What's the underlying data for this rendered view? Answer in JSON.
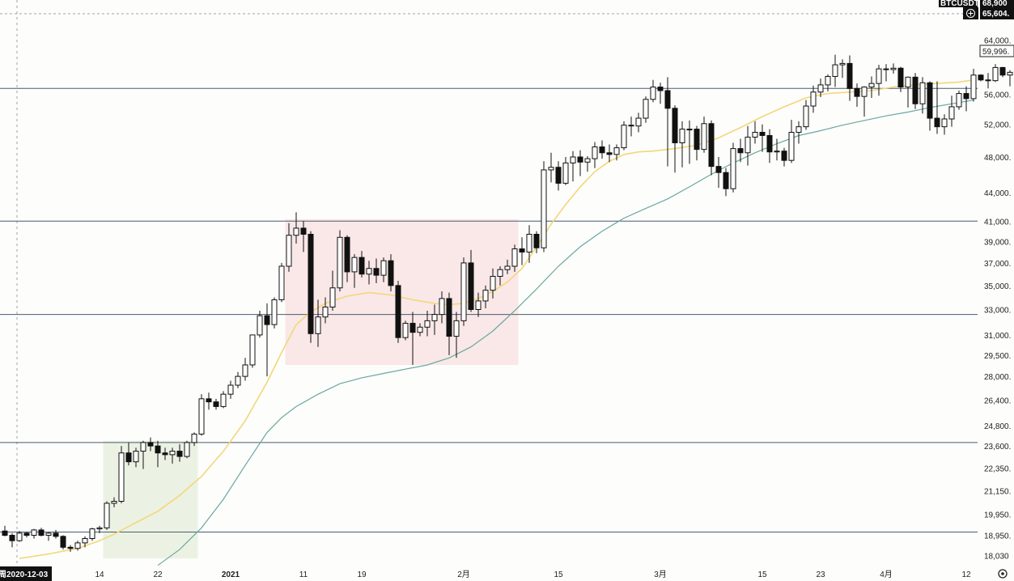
{
  "chart_data": {
    "type": "candlestick",
    "symbol_badge": "BTCUSDT",
    "badge_price_1": "68,900",
    "badge_price_2": "65,604.",
    "last_price_label": "59,996.",
    "crosshair_date_label": "2020-12-03",
    "crosshair_date_prefix": "周",
    "y_scale": "log",
    "ylim": [
      17800,
      66500
    ],
    "y_ticks": [
      {
        "v": 64000,
        "label": "64,000."
      },
      {
        "v": 60000,
        "label": ""
      },
      {
        "v": 56000,
        "label": "56,000."
      },
      {
        "v": 52000,
        "label": "52,000."
      },
      {
        "v": 48000,
        "label": "48,000."
      },
      {
        "v": 44000,
        "label": "44,000."
      },
      {
        "v": 41000,
        "label": "41,000."
      },
      {
        "v": 39000,
        "label": "39,000."
      },
      {
        "v": 37000,
        "label": "37,000."
      },
      {
        "v": 35000,
        "label": "35,000."
      },
      {
        "v": 33000,
        "label": "33,000."
      },
      {
        "v": 31000,
        "label": "31,000."
      },
      {
        "v": 29500,
        "label": "29,500."
      },
      {
        "v": 28000,
        "label": "28,000."
      },
      {
        "v": 26400,
        "label": "26,400."
      },
      {
        "v": 24800,
        "label": "24,800."
      },
      {
        "v": 23600,
        "label": "23,600."
      },
      {
        "v": 22350,
        "label": "22,350."
      },
      {
        "v": 21150,
        "label": "21,150."
      },
      {
        "v": 19950,
        "label": "19,950."
      },
      {
        "v": 18950,
        "label": "18,950."
      },
      {
        "v": 18030,
        "label": "18,030"
      }
    ],
    "x_ticks": [
      {
        "i": 13,
        "label": "14",
        "bold": false
      },
      {
        "i": 21,
        "label": "22",
        "bold": false
      },
      {
        "i": 31,
        "label": "2021",
        "bold": true
      },
      {
        "i": 41,
        "label": "11",
        "bold": false
      },
      {
        "i": 49,
        "label": "19",
        "bold": false
      },
      {
        "i": 63,
        "label": "2月",
        "bold": false
      },
      {
        "i": 76,
        "label": "15",
        "bold": false
      },
      {
        "i": 90,
        "label": "3月",
        "bold": false
      },
      {
        "i": 104,
        "label": "15",
        "bold": false
      },
      {
        "i": 112,
        "label": "23",
        "bold": false
      },
      {
        "i": 121,
        "label": "4月",
        "bold": false
      },
      {
        "i": 132,
        "label": "12",
        "bold": false
      }
    ],
    "horizontal_levels": [
      56800,
      41000,
      32600,
      23800,
      19100
    ],
    "zones": [
      {
        "i0": 14,
        "i1": 26,
        "low": 17900,
        "high": 23900,
        "color": "#e3edd9"
      },
      {
        "i0": 39,
        "i1": 70,
        "low": 28800,
        "high": 41200,
        "color": "#f7dede"
      }
    ],
    "candles": [
      [
        19150,
        19400,
        18900,
        18950
      ],
      [
        18950,
        19050,
        18400,
        18700
      ],
      [
        18700,
        19150,
        18650,
        19050
      ],
      [
        19050,
        19100,
        18850,
        18950
      ],
      [
        18950,
        19250,
        18800,
        19200
      ],
      [
        19200,
        19300,
        18900,
        18950
      ],
      [
        18950,
        19100,
        18700,
        19050
      ],
      [
        19050,
        19200,
        18800,
        18900
      ],
      [
        18900,
        18950,
        18300,
        18400
      ],
      [
        18400,
        18500,
        18200,
        18350
      ],
      [
        18350,
        18700,
        18250,
        18600
      ],
      [
        18600,
        18900,
        18400,
        18800
      ],
      [
        18800,
        19300,
        18700,
        19250
      ],
      [
        19250,
        19400,
        19050,
        19300
      ],
      [
        19300,
        20600,
        19200,
        20500
      ],
      [
        20500,
        20800,
        20300,
        20600
      ],
      [
        20600,
        23600,
        20500,
        23200
      ],
      [
        23200,
        23800,
        22500,
        22700
      ],
      [
        22700,
        23500,
        22400,
        23300
      ],
      [
        23300,
        23900,
        22300,
        23800
      ],
      [
        23800,
        24100,
        23300,
        23600
      ],
      [
        23600,
        23900,
        22400,
        23200
      ],
      [
        23200,
        23500,
        22800,
        23100
      ],
      [
        23100,
        23500,
        22600,
        23300
      ],
      [
        23300,
        23700,
        22700,
        23000
      ],
      [
        23000,
        23900,
        22900,
        23800
      ],
      [
        23800,
        24400,
        23600,
        24300
      ],
      [
        24300,
        26800,
        24200,
        26500
      ],
      [
        26500,
        26900,
        25800,
        26300
      ],
      [
        26300,
        26500,
        25800,
        26000
      ],
      [
        26000,
        27000,
        25900,
        26800
      ],
      [
        26800,
        27700,
        26500,
        27400
      ],
      [
        27400,
        28300,
        27200,
        28000
      ],
      [
        28000,
        29300,
        27700,
        28800
      ],
      [
        28800,
        31000,
        28600,
        31000
      ],
      [
        31000,
        32900,
        30800,
        32500
      ],
      [
        32500,
        33500,
        28000,
        31800
      ],
      [
        31800,
        34000,
        31500,
        33800
      ],
      [
        33800,
        37000,
        33600,
        36700
      ],
      [
        36700,
        40800,
        36200,
        39600
      ],
      [
        39600,
        41900,
        38800,
        40300
      ],
      [
        40300,
        41000,
        38000,
        39700
      ],
      [
        39700,
        40000,
        30400,
        31100
      ],
      [
        31100,
        33800,
        30100,
        32400
      ],
      [
        32400,
        34000,
        31900,
        33200
      ],
      [
        33200,
        36300,
        32900,
        34800
      ],
      [
        34800,
        40100,
        34500,
        39400
      ],
      [
        39400,
        39600,
        35300,
        36200
      ],
      [
        36200,
        37800,
        34800,
        37500
      ],
      [
        37500,
        38100,
        35700,
        36000
      ],
      [
        36000,
        37200,
        35100,
        36500
      ],
      [
        36500,
        37400,
        35200,
        35900
      ],
      [
        35900,
        37500,
        35300,
        37200
      ],
      [
        37200,
        37800,
        34500,
        35000
      ],
      [
        35000,
        35400,
        30400,
        30800
      ],
      [
        30800,
        32100,
        30600,
        31900
      ],
      [
        31900,
        32800,
        28800,
        31200
      ],
      [
        31200,
        31900,
        30900,
        31600
      ],
      [
        31600,
        32900,
        30900,
        32100
      ],
      [
        32100,
        33400,
        31000,
        32600
      ],
      [
        32600,
        34500,
        31900,
        33900
      ],
      [
        33900,
        34400,
        29500,
        30900
      ],
      [
        30900,
        32800,
        29300,
        32100
      ],
      [
        32100,
        37500,
        31700,
        37000
      ],
      [
        37000,
        38200,
        32800,
        33000
      ],
      [
        33000,
        34400,
        32400,
        33700
      ],
      [
        33700,
        35000,
        33100,
        34600
      ],
      [
        34600,
        36500,
        33900,
        35800
      ],
      [
        35800,
        36700,
        35000,
        36400
      ],
      [
        36400,
        37300,
        36000,
        36700
      ],
      [
        36700,
        38700,
        36200,
        38300
      ],
      [
        38300,
        39400,
        36800,
        38000
      ],
      [
        38000,
        40600,
        37000,
        39700
      ],
      [
        39700,
        40000,
        37900,
        38400
      ],
      [
        38400,
        47500,
        38000,
        46500
      ],
      [
        46500,
        48500,
        45100,
        46800
      ],
      [
        46800,
        47500,
        44200,
        45000
      ],
      [
        45000,
        48000,
        44800,
        47300
      ],
      [
        47300,
        48700,
        45200,
        48000
      ],
      [
        48000,
        48800,
        45800,
        47400
      ],
      [
        47400,
        48100,
        46300,
        47800
      ],
      [
        47800,
        49800,
        46700,
        49200
      ],
      [
        49200,
        50000,
        47800,
        48500
      ],
      [
        48500,
        49500,
        47400,
        48300
      ],
      [
        48300,
        49500,
        47600,
        49100
      ],
      [
        49100,
        52400,
        48800,
        51900
      ],
      [
        51900,
        53000,
        50500,
        51800
      ],
      [
        51800,
        53500,
        51000,
        52800
      ],
      [
        52800,
        55700,
        52200,
        55300
      ],
      [
        55300,
        58000,
        54900,
        57000
      ],
      [
        57000,
        57600,
        54700,
        56500
      ],
      [
        56500,
        58400,
        46900,
        54100
      ],
      [
        54100,
        54500,
        46200,
        49700
      ],
      [
        49700,
        52400,
        46800,
        51400
      ],
      [
        51400,
        52500,
        47200,
        51400
      ],
      [
        51400,
        51800,
        47600,
        48900
      ],
      [
        48900,
        53000,
        48500,
        52100
      ],
      [
        52100,
        52500,
        45900,
        46900
      ],
      [
        46900,
        48000,
        44500,
        46200
      ],
      [
        46200,
        46700,
        43600,
        44400
      ],
      [
        44400,
        49700,
        44000,
        49000
      ],
      [
        49000,
        50200,
        47400,
        48500
      ],
      [
        48500,
        51800,
        47000,
        50400
      ],
      [
        50400,
        52400,
        49600,
        51000
      ],
      [
        51000,
        52000,
        48600,
        50600
      ],
      [
        50600,
        51400,
        47300,
        48600
      ],
      [
        48600,
        50200,
        47600,
        48700
      ],
      [
        48700,
        49100,
        46900,
        47600
      ],
      [
        47600,
        52600,
        47300,
        51000
      ],
      [
        51000,
        52400,
        49600,
        51700
      ],
      [
        51700,
        55200,
        51300,
        54400
      ],
      [
        54400,
        57200,
        53500,
        56300
      ],
      [
        56300,
        58200,
        55600,
        57300
      ],
      [
        57300,
        58800,
        56400,
        58500
      ],
      [
        58500,
        61700,
        57000,
        60200
      ],
      [
        60200,
        61000,
        58300,
        60400
      ],
      [
        60400,
        61600,
        55100,
        56800
      ],
      [
        56800,
        57500,
        54300,
        55700
      ],
      [
        55700,
        57100,
        53000,
        57000
      ],
      [
        57000,
        58500,
        55500,
        57500
      ],
      [
        57500,
        60200,
        55800,
        59600
      ],
      [
        59600,
        60300,
        57800,
        59500
      ],
      [
        59500,
        60400,
        58900,
        59700
      ],
      [
        59700,
        59900,
        56300,
        57000
      ],
      [
        57000,
        58500,
        54200,
        58400
      ],
      [
        58400,
        59000,
        54000,
        54700
      ],
      [
        54700,
        58400,
        53400,
        57600
      ],
      [
        57600,
        57800,
        51200,
        52800
      ],
      [
        52800,
        57800,
        50800,
        51700
      ],
      [
        51700,
        53300,
        50700,
        52700
      ],
      [
        52700,
        55800,
        51700,
        54300
      ],
      [
        54300,
        56500,
        53900,
        56100
      ],
      [
        56100,
        57100,
        53700,
        55400
      ],
      [
        55400,
        59600,
        55000,
        58700
      ],
      [
        58700,
        58800,
        57800,
        58000
      ],
      [
        58000,
        59000,
        56800,
        57900
      ],
      [
        57900,
        60300,
        57700,
        59800
      ],
      [
        59800,
        59900,
        58400,
        58700
      ],
      [
        58700,
        59400,
        57100,
        59100
      ],
      [
        59100,
        59300,
        56200,
        57800
      ],
      [
        57800,
        59000,
        57500,
        58500
      ],
      [
        58500,
        59200,
        56500,
        57400
      ],
      [
        57400,
        59300,
        56100,
        58100
      ],
      [
        58100,
        58300,
        55700,
        57400
      ],
      [
        57400,
        59900,
        56400,
        58800
      ],
      [
        58800,
        61200,
        58200,
        60700
      ],
      [
        60700,
        61300,
        58800,
        59900
      ],
      [
        59900,
        60300,
        58900,
        59996
      ]
    ],
    "ma_fast": [
      [
        2,
        17900
      ],
      [
        6,
        18100
      ],
      [
        10,
        18350
      ],
      [
        13,
        18700
      ],
      [
        15,
        19000
      ],
      [
        18,
        19550
      ],
      [
        21,
        20100
      ],
      [
        24,
        20900
      ],
      [
        27,
        21900
      ],
      [
        30,
        23300
      ],
      [
        33,
        25100
      ],
      [
        36,
        27600
      ],
      [
        38,
        29700
      ],
      [
        40,
        31800
      ],
      [
        42,
        32800
      ],
      [
        44,
        33500
      ],
      [
        47,
        34100
      ],
      [
        50,
        34400
      ],
      [
        53,
        34200
      ],
      [
        56,
        33800
      ],
      [
        59,
        33500
      ],
      [
        61,
        33400
      ],
      [
        63,
        33500
      ],
      [
        65,
        33900
      ],
      [
        67,
        34500
      ],
      [
        69,
        35300
      ],
      [
        71,
        36500
      ],
      [
        73,
        38500
      ],
      [
        75,
        40700
      ],
      [
        77,
        42700
      ],
      [
        79,
        44600
      ],
      [
        81,
        46300
      ],
      [
        83,
        47500
      ],
      [
        85,
        48300
      ],
      [
        87,
        48600
      ],
      [
        89,
        48700
      ],
      [
        92,
        49000
      ],
      [
        95,
        49400
      ],
      [
        98,
        50300
      ],
      [
        101,
        51600
      ],
      [
        104,
        53000
      ],
      [
        107,
        54300
      ],
      [
        110,
        55500
      ],
      [
        113,
        56100
      ],
      [
        116,
        56300
      ],
      [
        119,
        56500
      ],
      [
        122,
        57000
      ],
      [
        125,
        57300
      ],
      [
        128,
        57500
      ],
      [
        131,
        57700
      ],
      [
        133,
        58000
      ]
    ],
    "ma_slow": [
      [
        21,
        17600
      ],
      [
        24,
        18300
      ],
      [
        27,
        19300
      ],
      [
        30,
        20700
      ],
      [
        33,
        22500
      ],
      [
        36,
        24400
      ],
      [
        38,
        25300
      ],
      [
        40,
        26000
      ],
      [
        43,
        26800
      ],
      [
        46,
        27500
      ],
      [
        49,
        27900
      ],
      [
        52,
        28200
      ],
      [
        55,
        28500
      ],
      [
        58,
        28800
      ],
      [
        61,
        29300
      ],
      [
        64,
        30100
      ],
      [
        67,
        31300
      ],
      [
        70,
        32900
      ],
      [
        73,
        34700
      ],
      [
        76,
        36700
      ],
      [
        79,
        38500
      ],
      [
        82,
        40000
      ],
      [
        85,
        41300
      ],
      [
        88,
        42300
      ],
      [
        91,
        43300
      ],
      [
        94,
        44600
      ],
      [
        97,
        46000
      ],
      [
        100,
        47300
      ],
      [
        103,
        48500
      ],
      [
        106,
        49600
      ],
      [
        109,
        50600
      ],
      [
        112,
        51200
      ],
      [
        115,
        51900
      ],
      [
        118,
        52500
      ],
      [
        121,
        53100
      ],
      [
        124,
        53600
      ],
      [
        127,
        54200
      ],
      [
        130,
        54700
      ],
      [
        133,
        55200
      ]
    ],
    "colors": {
      "up_body": "#ffffff",
      "down_body": "#111111",
      "wick": "#111111",
      "level_line": "#4a5b73",
      "ma_fast": "#f3d77a",
      "ma_slow": "#6aa7a3",
      "badge_bg": "#111111",
      "date_badge_bg": "#111111"
    }
  }
}
